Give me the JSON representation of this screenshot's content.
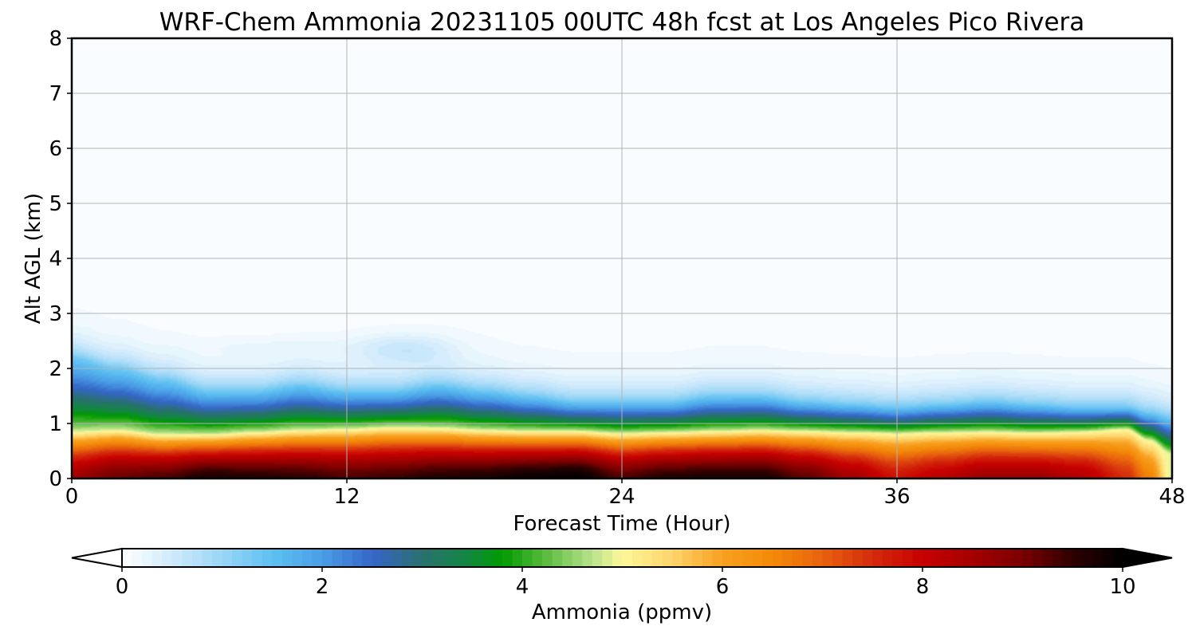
{
  "chart_data": {
    "type": "heatmap",
    "title": "WRF-Chem Ammonia  20231105 00UTC 48h fcst at Los Angeles Pico Rivera",
    "xlabel": "Forecast Time (Hour)",
    "ylabel": "Alt AGL (km)",
    "xlim": [
      0,
      48
    ],
    "ylim": [
      0,
      8
    ],
    "xticks": [
      0,
      12,
      24,
      36,
      48
    ],
    "yticks": [
      0,
      1,
      2,
      3,
      4,
      5,
      6,
      7,
      8
    ],
    "grid": true,
    "colorbar": {
      "label": "Ammonia  (ppmv)",
      "range": [
        0,
        10
      ],
      "ticks": [
        0,
        2,
        4,
        6,
        8,
        10
      ],
      "extend": "both",
      "orientation": "horizontal",
      "stops": [
        {
          "v": 0.0,
          "c": "#ffffff"
        },
        {
          "v": 0.5,
          "c": "#cfeafb"
        },
        {
          "v": 1.0,
          "c": "#9ad6f6"
        },
        {
          "v": 1.5,
          "c": "#5ec0f2"
        },
        {
          "v": 2.0,
          "c": "#4a9ee6"
        },
        {
          "v": 2.5,
          "c": "#3566c8"
        },
        {
          "v": 3.0,
          "c": "#2a7070"
        },
        {
          "v": 3.5,
          "c": "#10893c"
        },
        {
          "v": 3.8,
          "c": "#009a00"
        },
        {
          "v": 4.2,
          "c": "#55b83a"
        },
        {
          "v": 4.7,
          "c": "#b8e38c"
        },
        {
          "v": 5.0,
          "c": "#fff799"
        },
        {
          "v": 5.5,
          "c": "#fdd46c"
        },
        {
          "v": 6.0,
          "c": "#f8a020"
        },
        {
          "v": 6.5,
          "c": "#f48a08"
        },
        {
          "v": 7.0,
          "c": "#e8620e"
        },
        {
          "v": 7.5,
          "c": "#d42a0c"
        },
        {
          "v": 8.0,
          "c": "#c70000"
        },
        {
          "v": 8.5,
          "c": "#a50000"
        },
        {
          "v": 9.0,
          "c": "#7a0000"
        },
        {
          "v": 9.5,
          "c": "#2e0000"
        },
        {
          "v": 10.0,
          "c": "#000000"
        }
      ],
      "under_color": "#ffffff",
      "over_color": "#000000"
    },
    "field": {
      "description_units": "ppmv vs forecast hour (x) and altitude km (y)",
      "background": 0.05,
      "x": [
        0,
        2,
        4,
        6,
        8,
        10,
        12,
        14,
        16,
        18,
        20,
        22,
        24,
        26,
        28,
        30,
        32,
        34,
        36,
        38,
        40,
        42,
        44,
        46,
        47,
        48
      ],
      "surface_value": [
        8.6,
        9.1,
        9.3,
        9.7,
        9.6,
        9.5,
        9.3,
        9.4,
        9.6,
        9.7,
        9.9,
        10.0,
        9.3,
        9.6,
        9.7,
        9.7,
        9.2,
        8.5,
        7.8,
        8.2,
        8.6,
        8.6,
        8.3,
        7.5,
        6.6,
        4.8
      ],
      "layer_top_km": [
        0.85,
        0.88,
        0.8,
        0.8,
        0.84,
        0.88,
        0.9,
        0.93,
        0.92,
        0.88,
        0.86,
        0.86,
        0.82,
        0.84,
        0.86,
        0.88,
        0.86,
        0.84,
        0.82,
        0.84,
        0.85,
        0.83,
        0.85,
        0.9,
        0.7,
        0.45
      ],
      "blue_top_km": [
        2.2,
        2.0,
        1.8,
        1.6,
        1.6,
        1.7,
        1.6,
        1.6,
        1.7,
        1.6,
        1.5,
        1.4,
        1.4,
        1.4,
        1.5,
        1.5,
        1.4,
        1.35,
        1.3,
        1.35,
        1.4,
        1.35,
        1.3,
        1.3,
        1.2,
        1.1
      ]
    }
  }
}
